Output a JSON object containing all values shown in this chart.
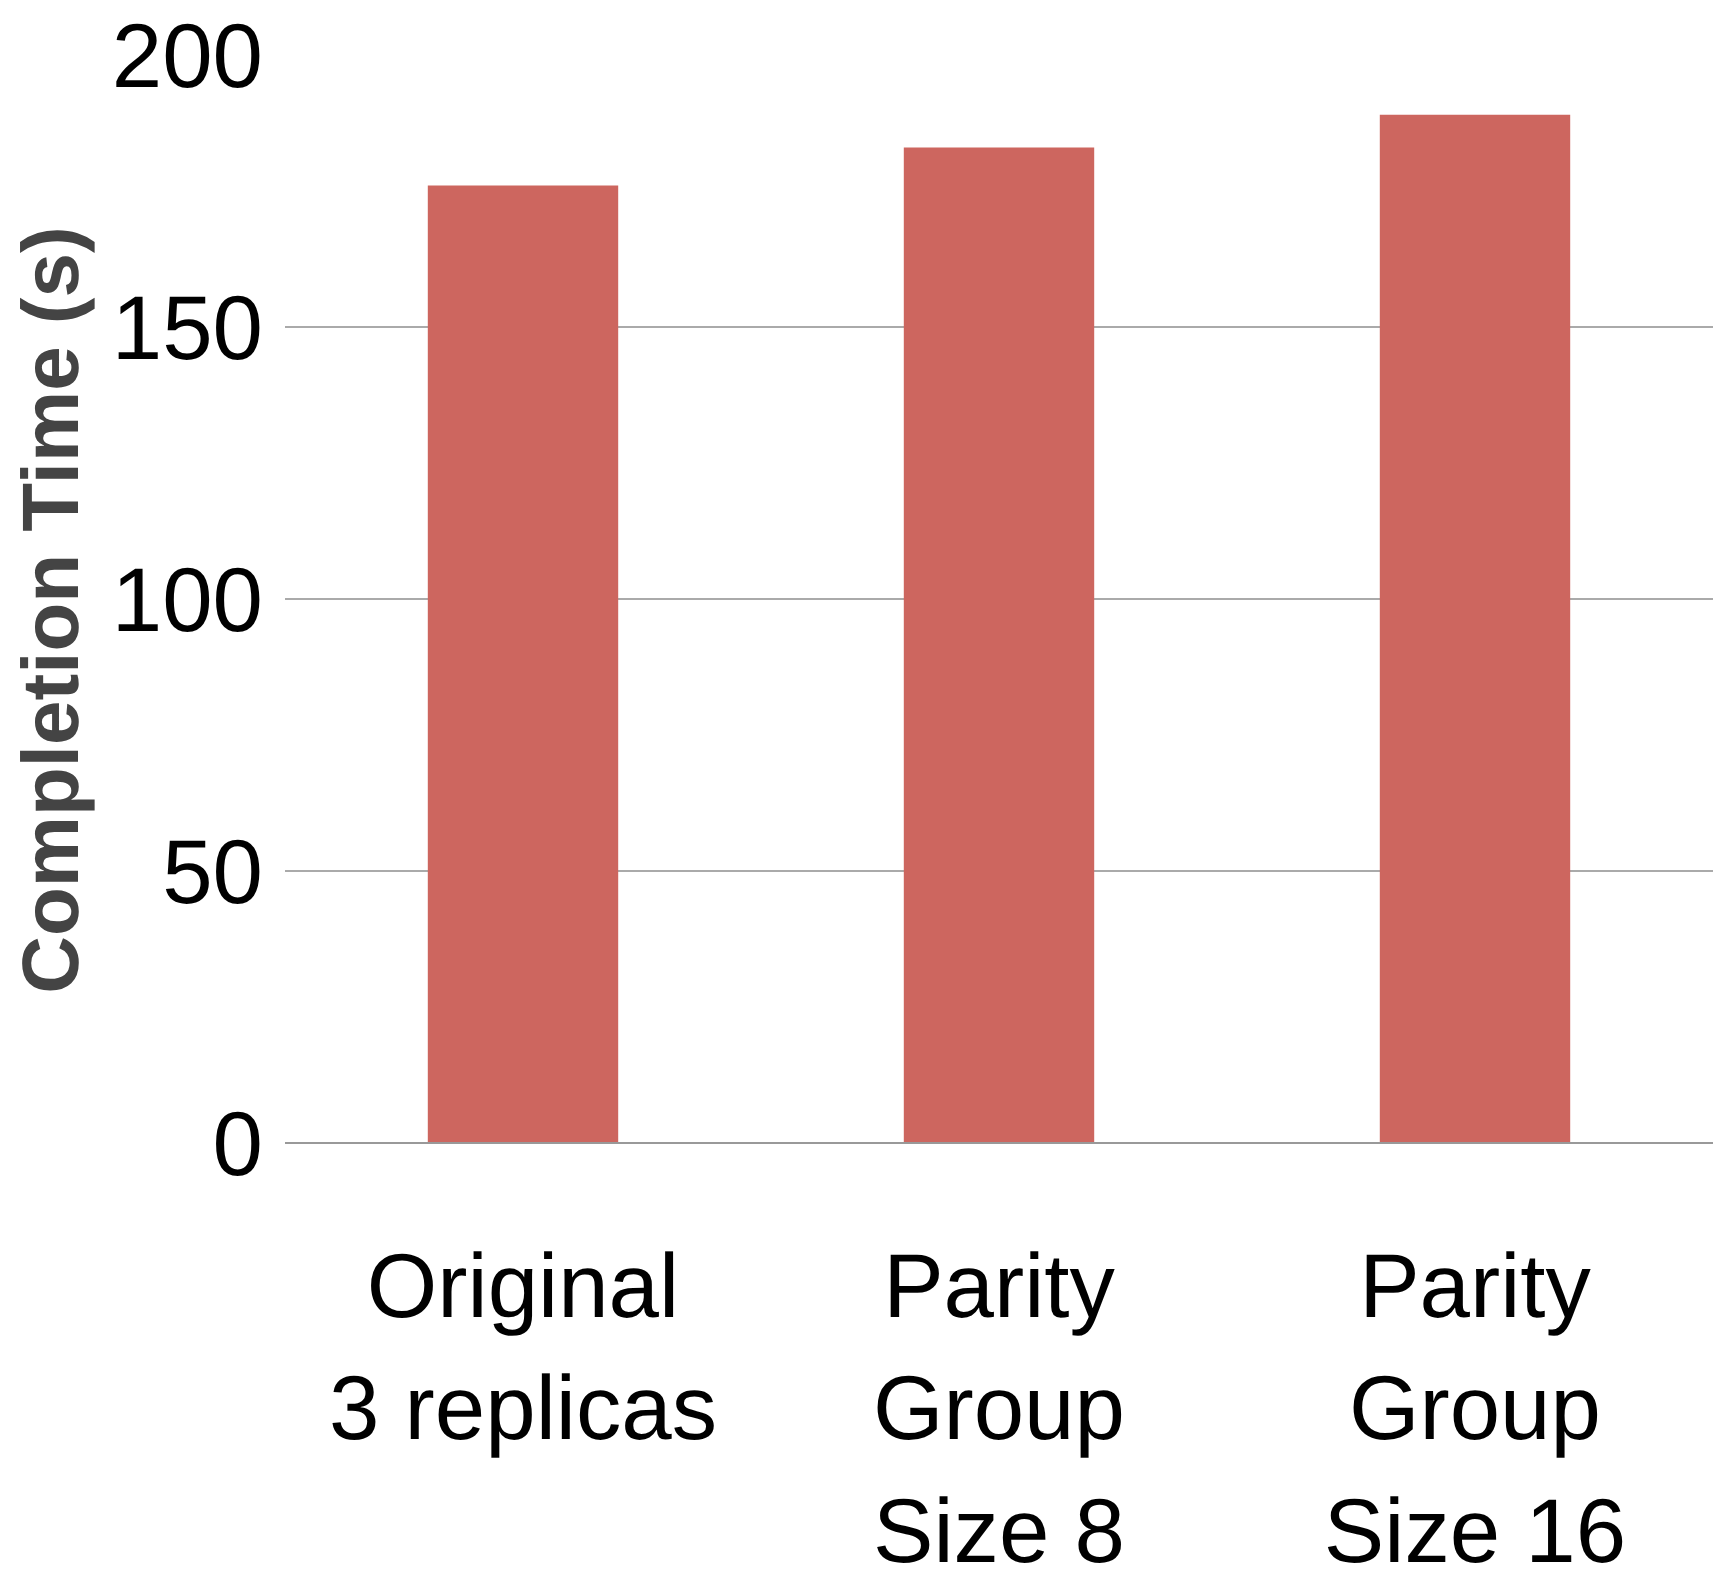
{
  "chart_data": {
    "type": "bar",
    "ylabel": "Completion  Time (s)",
    "categories": [
      "Original\n3 replicas",
      "Parity\nGroup\nSize 8",
      "Parity\nGroup\nSize 16"
    ],
    "values": [
      176,
      183,
      189
    ],
    "color": "#cd665f",
    "ylim": [
      0,
      200
    ],
    "yticks": [
      0,
      50,
      100,
      150,
      200
    ],
    "grid": "y"
  }
}
